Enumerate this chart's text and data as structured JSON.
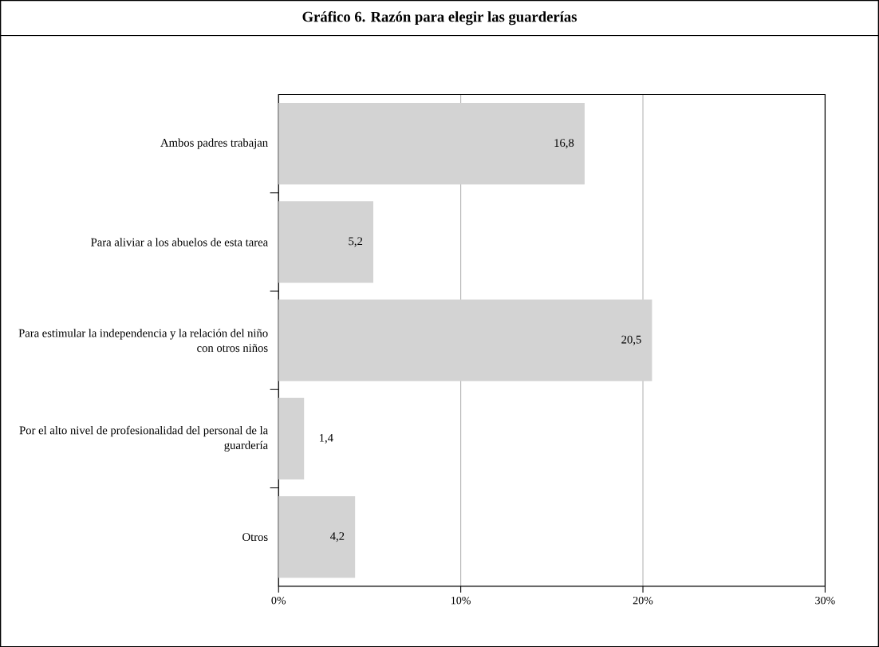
{
  "chart_data": {
    "type": "bar",
    "orientation": "horizontal",
    "title": "Gráfico 6. Razón para elegir las guarderías",
    "categories": [
      "Ambos padres trabajan",
      "Para aliviar a los abuelos de esta tarea",
      "Para estimular la independencia y la relación del niño con otros niños",
      "Por el alto nivel de profesionalidad del personal de la guardería",
      "Otros"
    ],
    "values": [
      16.8,
      5.2,
      20.5,
      1.4,
      4.2
    ],
    "value_labels": [
      "16,8",
      "5,2",
      "20,5",
      "1,4",
      "4,2"
    ],
    "color": "#d3d3d3",
    "xlim": [
      0,
      30
    ],
    "xticks": [
      {
        "value": 0,
        "label": "0%"
      },
      {
        "value": 10,
        "label": "10%"
      },
      {
        "value": 20,
        "label": "20%"
      },
      {
        "value": 30,
        "label": "30%"
      }
    ],
    "grid": "x"
  }
}
